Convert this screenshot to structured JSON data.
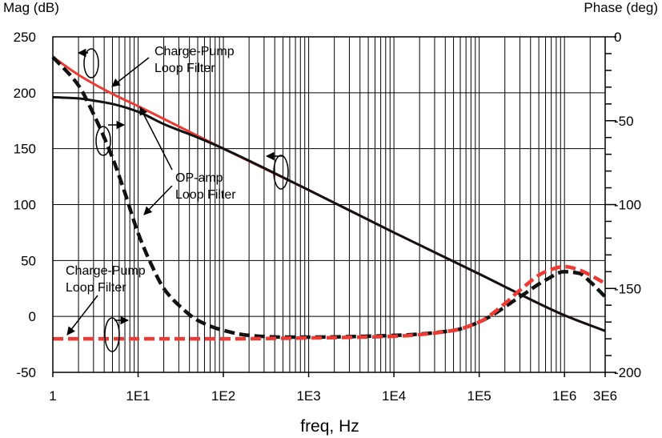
{
  "chart_data": {
    "type": "line",
    "title": "",
    "xlabel": "freq, Hz",
    "ylabel_left": "Mag (dB)",
    "ylabel_right": "Phase (deg)",
    "xscale": "log",
    "xlim": [
      1,
      3000000
    ],
    "ylim_left": [
      -50,
      250
    ],
    "ylim_right": [
      -200,
      0
    ],
    "grid": true,
    "x_ticks": [
      {
        "value": 1,
        "label": "1"
      },
      {
        "value": 10,
        "label": "1E1"
      },
      {
        "value": 100,
        "label": "1E2"
      },
      {
        "value": 1000,
        "label": "1E3"
      },
      {
        "value": 10000,
        "label": "1E4"
      },
      {
        "value": 100000,
        "label": "1E5"
      },
      {
        "value": 1000000,
        "label": "1E6"
      },
      {
        "value": 3000000,
        "label": "3E6"
      }
    ],
    "y_left_ticks": [
      250,
      200,
      150,
      100,
      50,
      0,
      -50
    ],
    "y_right_ticks": [
      0,
      -50,
      -100,
      -150,
      -200
    ],
    "series": [
      {
        "axis": "left",
        "color": "#ee3a33",
        "style": "solid",
        "x": [
          1,
          2,
          5,
          10,
          100,
          1000,
          10000,
          100000,
          1000000,
          3000000
        ],
        "y": [
          232,
          216,
          199,
          188,
          150,
          113,
          75,
          38,
          1,
          -13
        ]
      },
      {
        "axis": "left",
        "color": "#111111",
        "style": "solid",
        "x": [
          1,
          2,
          3,
          5,
          10,
          20,
          50,
          100,
          1000,
          10000,
          100000,
          1000000,
          3000000
        ],
        "y": [
          196,
          195,
          193,
          190,
          183,
          172,
          160,
          150,
          113,
          75,
          38,
          1,
          -13
        ]
      },
      {
        "axis": "right",
        "color": "#111111",
        "style": "dashed",
        "x": [
          1,
          2,
          3,
          5,
          7,
          10,
          15,
          20,
          30,
          50,
          100,
          200,
          500,
          1000,
          10000,
          50000,
          100000,
          300000,
          600000,
          1000000,
          1500000,
          2000000,
          3000000
        ],
        "y": [
          -12,
          -29,
          -46,
          -72,
          -93,
          -117,
          -138,
          -150,
          -160,
          -169,
          -175,
          -178,
          -179,
          -179,
          -178,
          -175,
          -170,
          -155,
          -145,
          -140,
          -141,
          -146,
          -155
        ]
      },
      {
        "axis": "right",
        "color": "#ee3a33",
        "style": "dashed",
        "x": [
          1,
          10,
          100,
          1000,
          10000,
          50000,
          100000,
          200000,
          300000,
          600000,
          1000000,
          1500000,
          2000000,
          3000000
        ],
        "y": [
          -180,
          -180,
          -180,
          -179.5,
          -178.5,
          -175,
          -170,
          -159,
          -151,
          -140,
          -137,
          -139,
          -142,
          -147
        ]
      }
    ]
  },
  "annotations": {
    "cp_top_line1": "Charge-Pump",
    "cp_top_line2": "Loop Filter",
    "opamp_line1": "OP-amp",
    "opamp_line2": "Loop Filter",
    "cp_bottom_line1": "Charge-Pump",
    "cp_bottom_line2": "Loop Filter"
  }
}
